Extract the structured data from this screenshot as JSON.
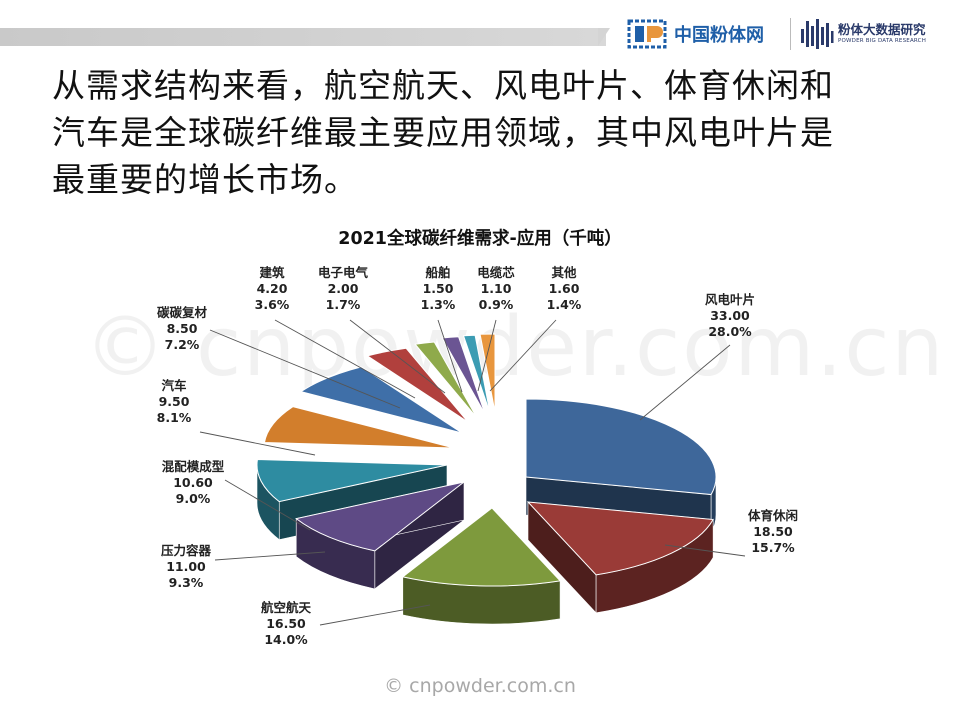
{
  "header": {
    "logo_main": "中国粉体网",
    "logo_secondary_cn": "粉体大数据研究",
    "logo_secondary_en": "POWDER BIG DATA RESEARCH"
  },
  "headline": {
    "line1": "从需求结构来看，航空航天、风电叶片、体育休闲和",
    "line2": "汽车是全球碳纤维最主要应用领域，其中风电叶片是",
    "line3": "最重要的增长市场。"
  },
  "watermark": "© cnpowder.com.cn",
  "footer": "© cnpowder.com.cn",
  "chart_data": {
    "type": "pie",
    "title": "2021全球碳纤维需求-应用（千吨）",
    "slices": [
      {
        "label": "风电叶片",
        "value": 33.0,
        "value_label": "33.00",
        "pct_label": "28.0%",
        "color": "#3E679A"
      },
      {
        "label": "体育休闲",
        "value": 18.5,
        "value_label": "18.50",
        "pct_label": "15.7%",
        "color": "#9A3B37"
      },
      {
        "label": "航空航天",
        "value": 16.5,
        "value_label": "16.50",
        "pct_label": "14.0%",
        "color": "#7E9A3D"
      },
      {
        "label": "压力容器",
        "value": 11.0,
        "value_label": "11.00",
        "pct_label": "9.3%",
        "color": "#5E4A85"
      },
      {
        "label": "混配模成型",
        "value": 10.6,
        "value_label": "10.60",
        "pct_label": "9.0%",
        "color": "#2E8CA1"
      },
      {
        "label": "汽车",
        "value": 9.5,
        "value_label": "9.50",
        "pct_label": "8.1%",
        "color": "#D27E2C"
      },
      {
        "label": "碳碳复材",
        "value": 8.5,
        "value_label": "8.50",
        "pct_label": "7.2%",
        "color": "#3F6FA8"
      },
      {
        "label": "建筑",
        "value": 4.2,
        "value_label": "4.20",
        "pct_label": "3.6%",
        "color": "#B1403D"
      },
      {
        "label": "电子电气",
        "value": 2.0,
        "value_label": "2.00",
        "pct_label": "1.7%",
        "color": "#8FAA4B"
      },
      {
        "label": "船舶",
        "value": 1.5,
        "value_label": "1.50",
        "pct_label": "1.3%",
        "color": "#6B5593"
      },
      {
        "label": "电缆芯",
        "value": 1.1,
        "value_label": "1.10",
        "pct_label": "0.9%",
        "color": "#3C9CB3"
      },
      {
        "label": "其他",
        "value": 1.6,
        "value_label": "1.60",
        "pct_label": "1.4%",
        "color": "#E8963D"
      }
    ]
  }
}
